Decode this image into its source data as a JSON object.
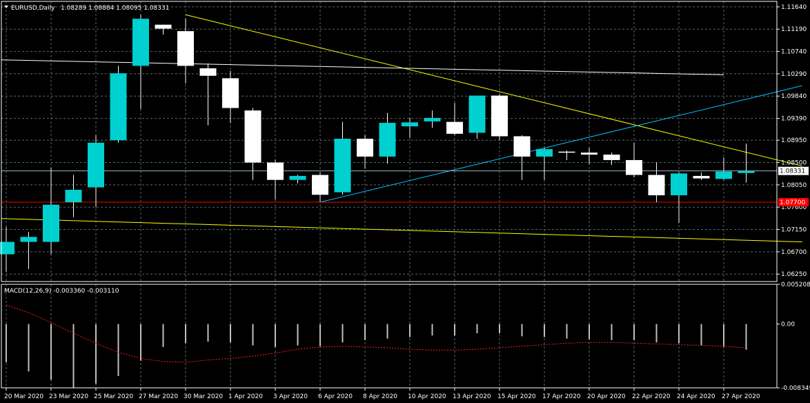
{
  "chart_data": [
    {
      "type": "candlestick",
      "title": "EURUSD,Daily",
      "ohlc_header": "1.08289 1.08884 1.08095 1.08331",
      "ylim": [
        1.061,
        1.1175
      ],
      "grid": true,
      "y_ticks": [
        "1.11640",
        "1.11190",
        "1.10740",
        "1.10290",
        "1.09840",
        "1.09390",
        "1.08950",
        "1.08500",
        "1.08050",
        "1.07600",
        "1.07150",
        "1.06700",
        "1.06250"
      ],
      "x_labels": [
        {
          "day": 0,
          "label": "20 Mar 2020"
        },
        {
          "day": 2,
          "label": "23 Mar 2020"
        },
        {
          "day": 4,
          "label": "25 Mar 2020"
        },
        {
          "day": 6,
          "label": "27 Mar 2020"
        },
        {
          "day": 8,
          "label": "30 Mar 2020"
        },
        {
          "day": 10,
          "label": "1 Apr 2020"
        },
        {
          "day": 12,
          "label": "3 Apr 2020"
        },
        {
          "day": 14,
          "label": "6 Apr 2020"
        },
        {
          "day": 16,
          "label": "8 Apr 2020"
        },
        {
          "day": 18,
          "label": "10 Apr 2020"
        },
        {
          "day": 20,
          "label": "13 Apr 2020"
        },
        {
          "day": 22,
          "label": "15 Apr 2020"
        },
        {
          "day": 24,
          "label": "17 Apr 2020"
        },
        {
          "day": 26,
          "label": "20 Apr 2020"
        },
        {
          "day": 28,
          "label": "22 Apr 2020"
        },
        {
          "day": 30,
          "label": "24 Apr 2020"
        },
        {
          "day": 32,
          "label": "27 Apr 2020"
        }
      ],
      "candles": [
        {
          "o": 1.0665,
          "h": 1.072,
          "l": 1.063,
          "c": 1.069
        },
        {
          "o": 1.069,
          "h": 1.071,
          "l": 1.0635,
          "c": 1.07
        },
        {
          "o": 1.069,
          "h": 1.084,
          "l": 1.0665,
          "c": 1.0765
        },
        {
          "o": 1.077,
          "h": 1.0825,
          "l": 1.074,
          "c": 1.0795
        },
        {
          "o": 1.08,
          "h": 1.0905,
          "l": 1.076,
          "c": 1.089
        },
        {
          "o": 1.0895,
          "h": 1.1045,
          "l": 1.089,
          "c": 1.103
        },
        {
          "o": 1.1045,
          "h": 1.1148,
          "l": 1.0958,
          "c": 1.114
        },
        {
          "o": 1.1128,
          "h": 1.1128,
          "l": 1.1108,
          "c": 1.112
        },
        {
          "o": 1.1115,
          "h": 1.114,
          "l": 1.101,
          "c": 1.1045
        },
        {
          "o": 1.104,
          "h": 1.105,
          "l": 1.0925,
          "c": 1.1025
        },
        {
          "o": 1.102,
          "h": 1.1035,
          "l": 1.093,
          "c": 1.096
        },
        {
          "o": 1.0955,
          "h": 1.096,
          "l": 1.0815,
          "c": 1.085
        },
        {
          "o": 1.085,
          "h": 1.0855,
          "l": 1.0775,
          "c": 1.0815
        },
        {
          "o": 1.0815,
          "h": 1.0825,
          "l": 1.0808,
          "c": 1.0823
        },
        {
          "o": 1.0825,
          "h": 1.083,
          "l": 1.077,
          "c": 1.0785
        },
        {
          "o": 1.079,
          "h": 1.0932,
          "l": 1.0785,
          "c": 1.0898
        },
        {
          "o": 1.0898,
          "h": 1.0905,
          "l": 1.0838,
          "c": 1.0862
        },
        {
          "o": 1.0862,
          "h": 1.095,
          "l": 1.0848,
          "c": 1.093
        },
        {
          "o": 1.0923,
          "h": 1.094,
          "l": 1.09,
          "c": 1.0931
        },
        {
          "o": 1.0933,
          "h": 1.0955,
          "l": 1.092,
          "c": 1.094
        },
        {
          "o": 1.0932,
          "h": 1.097,
          "l": 1.0905,
          "c": 1.0908
        },
        {
          "o": 1.091,
          "h": 1.0985,
          "l": 1.0898,
          "c": 1.0985
        },
        {
          "o": 1.0985,
          "h": 1.0988,
          "l": 1.0895,
          "c": 1.0903
        },
        {
          "o": 1.0903,
          "h": 1.0905,
          "l": 1.0815,
          "c": 1.0862
        },
        {
          "o": 1.0862,
          "h": 1.088,
          "l": 1.0815,
          "c": 1.0877
        },
        {
          "o": 1.0872,
          "h": 1.0874,
          "l": 1.0855,
          "c": 1.087
        },
        {
          "o": 1.087,
          "h": 1.088,
          "l": 1.0847,
          "c": 1.0866
        },
        {
          "o": 1.0866,
          "h": 1.087,
          "l": 1.0845,
          "c": 1.0855
        },
        {
          "o": 1.0855,
          "h": 1.089,
          "l": 1.082,
          "c": 1.0825
        },
        {
          "o": 1.0825,
          "h": 1.085,
          "l": 1.077,
          "c": 1.0784
        },
        {
          "o": 1.0784,
          "h": 1.083,
          "l": 1.0728,
          "c": 1.0828
        },
        {
          "o": 1.0823,
          "h": 1.083,
          "l": 1.0815,
          "c": 1.0818
        },
        {
          "o": 1.0817,
          "h": 1.086,
          "l": 1.0815,
          "c": 1.0832
        },
        {
          "o": 1.08289,
          "h": 1.08884,
          "l": 1.08095,
          "c": 1.08331
        }
      ],
      "trendlines": [
        {
          "color": "#ffff00",
          "from": {
            "day": 8,
            "price": 1.1148
          },
          "to": {
            "day": 35.5,
            "price": 1.0843
          }
        },
        {
          "color": "#ffffff",
          "from": {
            "day": -0.2,
            "price": 1.1057
          },
          "to": {
            "day": 32,
            "price": 1.1027
          }
        },
        {
          "color": "#00c0ff",
          "from": {
            "day": 14,
            "price": 1.077
          },
          "to": {
            "day": 35.5,
            "price": 1.1005
          }
        },
        {
          "color": "#ffff00",
          "from": {
            "day": -0.2,
            "price": 1.0737
          },
          "to": {
            "day": 35.5,
            "price": 1.069
          }
        }
      ],
      "price_line": {
        "value": 1.08331,
        "label": "1.08331",
        "color": "#9ab8c8"
      },
      "level_line": {
        "value": 1.077,
        "label": "1.07700",
        "color": "#ff0000"
      },
      "colors": {
        "bull": "#00d0d0",
        "bear": "#ffffff",
        "wick": "#ffffff",
        "grid": "#5a6a6a",
        "bg": "#000000",
        "axis": "#ffffff"
      }
    },
    {
      "type": "histogram",
      "title": "MACD(12,26,9) -0.003360 -0.003110",
      "ylim": [
        -0.008349,
        0.005208
      ],
      "y_ticks": [
        "0.005208",
        "0.00",
        "-0.008349"
      ],
      "macd": [
        -0.005,
        -0.0062,
        -0.0073,
        -0.0083,
        -0.0078,
        -0.0068,
        -0.0048,
        -0.003,
        -0.0025,
        -0.0023,
        -0.0024,
        -0.0028,
        -0.003,
        -0.0028,
        -0.0029,
        -0.0024,
        -0.0021,
        -0.0019,
        -0.0017,
        -0.0015,
        -0.0015,
        -0.0012,
        -0.0012,
        -0.0016,
        -0.0017,
        -0.0019,
        -0.002,
        -0.0021,
        -0.0021,
        -0.0024,
        -0.0025,
        -0.0028,
        -0.003,
        -0.00336
      ],
      "signal": [
        0.0025,
        0.0015,
        0.0002,
        -0.0012,
        -0.0025,
        -0.0037,
        -0.0045,
        -0.0049,
        -0.005,
        -0.0047,
        -0.0045,
        -0.0042,
        -0.0038,
        -0.0033,
        -0.003,
        -0.0029,
        -0.003,
        -0.0031,
        -0.0033,
        -0.0034,
        -0.0034,
        -0.0033,
        -0.0031,
        -0.0029,
        -0.0027,
        -0.0025,
        -0.0024,
        -0.0024,
        -0.0025,
        -0.0026,
        -0.0027,
        -0.0028,
        -0.0029,
        -0.00311
      ],
      "colors": {
        "histogram": "#c0c0c0",
        "signal": "#ff2020"
      }
    }
  ]
}
